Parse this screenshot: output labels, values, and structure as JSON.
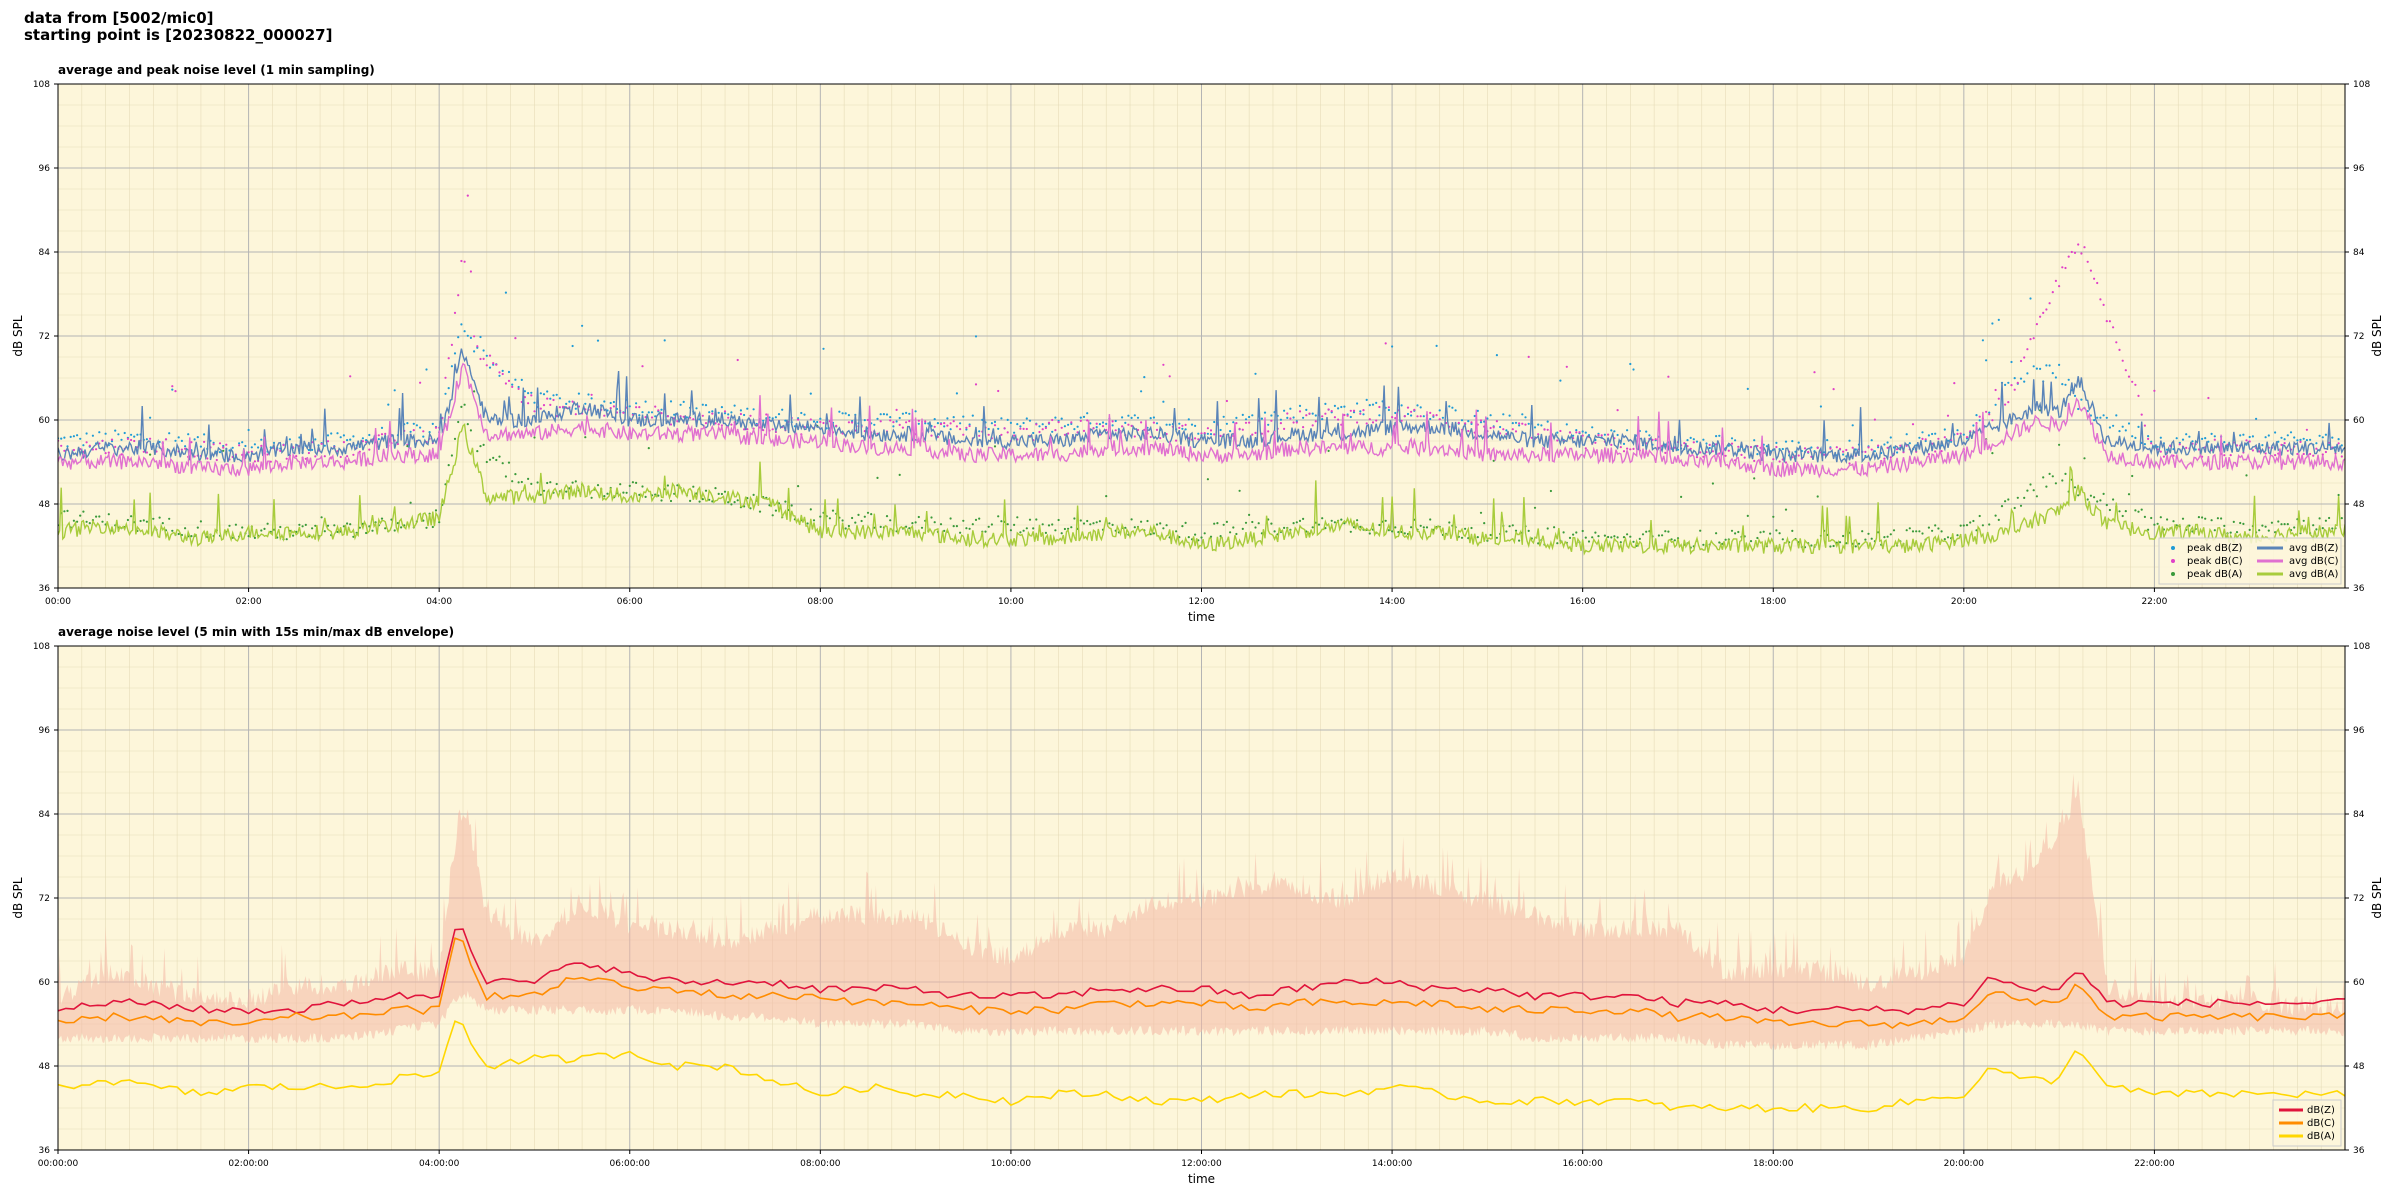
{
  "header": {
    "line1": "data from [5002/mic0]",
    "line2": "starting point is [20230822_000027]"
  },
  "colors": {
    "background": "#fdf6da",
    "peak_z": "#1f9bd6",
    "peak_c": "#e040c8",
    "peak_a": "#3a9a3a",
    "avg_z": "#5a84b8",
    "avg_c": "#e070d0",
    "avg_a": "#a8cc3c",
    "db_z": "#e0143c",
    "db_c": "#ff8c00",
    "db_a": "#ffd700",
    "envelope": "#f4b8a6"
  },
  "chart_data": [
    {
      "type": "scatter",
      "title": "average and peak noise level (1 min sampling)",
      "xlabel": "time",
      "ylabel": "dB SPL",
      "ylabel_right": "dB SPL",
      "ylim": [
        36,
        108
      ],
      "yticks": [
        "36",
        "48",
        "60",
        "72",
        "84",
        "96",
        "108"
      ],
      "xlim_hours": [
        0,
        24
      ],
      "xticks": [
        "00:00",
        "02:00",
        "04:00",
        "06:00",
        "08:00",
        "10:00",
        "12:00",
        "14:00",
        "16:00",
        "18:00",
        "20:00",
        "22:00"
      ],
      "grid": true,
      "legend_position": "lower-right",
      "series": [
        {
          "name": "peak dB(Z)",
          "kind": "points",
          "color_key": "peak_z",
          "hours": [
            0,
            1,
            2,
            3,
            4,
            4.25,
            4.4,
            5,
            6,
            7,
            8,
            9,
            10,
            11,
            12,
            13,
            14,
            15,
            16,
            17,
            18,
            19,
            20,
            20.5,
            21,
            21.2,
            22,
            23,
            24
          ],
          "values": [
            57,
            57.5,
            56,
            57,
            59,
            74,
            70,
            63,
            62,
            61,
            60,
            60,
            59,
            60,
            59,
            61,
            62,
            60,
            58,
            57,
            56,
            56,
            58,
            66,
            67,
            62,
            57,
            57,
            57
          ]
        },
        {
          "name": "peak dB(C)",
          "kind": "points",
          "color_key": "peak_c",
          "hours": [
            0,
            1,
            2,
            3,
            4,
            4.25,
            4.4,
            5,
            6,
            7,
            8,
            9,
            10,
            11,
            12,
            13,
            14,
            15,
            16,
            17,
            18,
            19,
            20,
            20.5,
            21,
            21.2,
            22,
            23,
            24
          ],
          "values": [
            56,
            56.5,
            55,
            56,
            58,
            84,
            70,
            62,
            61,
            60,
            59,
            59,
            58,
            59,
            58,
            60,
            61,
            59,
            57,
            56,
            55,
            55,
            57,
            64,
            80,
            86,
            56,
            56,
            56
          ]
        },
        {
          "name": "peak dB(A)",
          "kind": "points",
          "color_key": "peak_a",
          "hours": [
            0,
            1,
            2,
            3,
            4,
            4.25,
            4.4,
            5,
            6,
            7,
            8,
            9,
            10,
            11,
            12,
            13,
            14,
            15,
            16,
            17,
            18,
            19,
            20,
            20.5,
            21,
            21.2,
            22,
            23,
            24
          ],
          "values": [
            46,
            45,
            44,
            44,
            46,
            62,
            56,
            50,
            50,
            49,
            46,
            45,
            45,
            45,
            44,
            45,
            45,
            44,
            43,
            43,
            43,
            43,
            44,
            48,
            52,
            50,
            45,
            45,
            45
          ]
        },
        {
          "name": "avg dB(Z)",
          "kind": "line",
          "color_key": "avg_z",
          "hours": [
            0,
            0.5,
            1,
            1.5,
            2,
            2.5,
            3,
            3.5,
            4,
            4.25,
            4.5,
            5,
            5.5,
            6,
            6.5,
            7,
            7.5,
            8,
            8.5,
            9,
            9.5,
            10,
            10.5,
            11,
            11.5,
            12,
            12.5,
            13,
            13.5,
            14,
            14.5,
            15,
            15.5,
            16,
            16.5,
            17,
            17.5,
            18,
            18.5,
            19,
            19.5,
            20,
            20.5,
            20.8,
            21,
            21.2,
            21.5,
            22,
            22.5,
            23,
            23.5,
            24
          ],
          "values": [
            55,
            56,
            56,
            55,
            55,
            56,
            56,
            57,
            57,
            70,
            60,
            60,
            62,
            60,
            60,
            60,
            59,
            59,
            58,
            58,
            57,
            57,
            57,
            58,
            58,
            57,
            57,
            58,
            58,
            59,
            59,
            58,
            57,
            57,
            57,
            56,
            56,
            55,
            55,
            55,
            56,
            57,
            60,
            62,
            61,
            66,
            57,
            56,
            56,
            56,
            56,
            56
          ]
        },
        {
          "name": "avg dB(C)",
          "kind": "line",
          "color_key": "avg_c",
          "hours": [
            0,
            0.5,
            1,
            1.5,
            2,
            2.5,
            3,
            3.5,
            4,
            4.25,
            4.5,
            5,
            5.5,
            6,
            6.5,
            7,
            7.5,
            8,
            8.5,
            9,
            9.5,
            10,
            10.5,
            11,
            11.5,
            12,
            12.5,
            13,
            13.5,
            14,
            14.5,
            15,
            15.5,
            16,
            16.5,
            17,
            17.5,
            18,
            18.5,
            19,
            19.5,
            20,
            20.5,
            20.8,
            21,
            21.2,
            21.5,
            22,
            22.5,
            23,
            23.5,
            24
          ],
          "values": [
            54,
            54,
            54,
            53,
            53,
            54,
            54,
            55,
            55,
            68,
            58,
            58,
            59,
            58,
            58,
            58,
            57,
            57,
            56,
            56,
            55,
            55,
            55,
            56,
            56,
            55,
            55,
            56,
            56,
            56,
            56,
            55,
            55,
            55,
            55,
            54,
            54,
            53,
            53,
            53,
            54,
            55,
            58,
            60,
            59,
            63,
            55,
            54,
            54,
            54,
            54,
            54
          ]
        },
        {
          "name": "avg dB(A)",
          "kind": "line",
          "color_key": "avg_a",
          "hours": [
            0,
            0.5,
            1,
            1.5,
            2,
            2.5,
            3,
            3.5,
            4,
            4.25,
            4.5,
            5,
            5.5,
            6,
            6.5,
            7,
            7.5,
            8,
            8.5,
            9,
            9.5,
            10,
            10.5,
            11,
            11.5,
            12,
            12.5,
            13,
            13.5,
            14,
            14.5,
            15,
            15.5,
            16,
            16.5,
            17,
            17.5,
            18,
            18.5,
            19,
            19.5,
            20,
            20.5,
            20.8,
            21,
            21.2,
            21.5,
            22,
            22.5,
            23,
            23.5,
            24
          ],
          "values": [
            44,
            45,
            44,
            43,
            44,
            44,
            44,
            45,
            46,
            59,
            49,
            49,
            50,
            49,
            50,
            49,
            48,
            44,
            44,
            44,
            43,
            43,
            43,
            44,
            44,
            42,
            43,
            44,
            45,
            44,
            44,
            43,
            43,
            42,
            42,
            42,
            42,
            42,
            42,
            42,
            42,
            43,
            44,
            46,
            47,
            50,
            45,
            44,
            44,
            43,
            44,
            44
          ]
        }
      ]
    },
    {
      "type": "line",
      "title": "average noise level (5 min with 15s min/max dB envelope)",
      "xlabel": "time",
      "ylabel": "dB SPL",
      "ylabel_right": "dB SPL",
      "ylim": [
        36,
        108
      ],
      "yticks": [
        "36",
        "48",
        "60",
        "72",
        "84",
        "96",
        "108"
      ],
      "xlim_hours": [
        0,
        24
      ],
      "xticks": [
        "00:00:00",
        "02:00:00",
        "04:00:00",
        "06:00:00",
        "08:00:00",
        "10:00:00",
        "12:00:00",
        "14:00:00",
        "16:00:00",
        "18:00:00",
        "20:00:00",
        "22:00:00"
      ],
      "grid": true,
      "legend_position": "lower-right",
      "envelope": {
        "hours": [
          0,
          0.5,
          1,
          1.5,
          2,
          2.5,
          3,
          3.5,
          4,
          4.2,
          4.3,
          4.5,
          5,
          5.5,
          6,
          6.5,
          7,
          7.5,
          8,
          8.5,
          9,
          9.5,
          10,
          10.5,
          11,
          11.5,
          12,
          12.5,
          13,
          13.5,
          14,
          14.5,
          15,
          15.5,
          16,
          16.5,
          17,
          17.5,
          18,
          18.5,
          19,
          19.5,
          20,
          20.3,
          20.6,
          21,
          21.2,
          21.5,
          22,
          22.5,
          23,
          23.5,
          24
        ],
        "max": [
          58,
          62,
          60,
          58,
          58,
          60,
          60,
          62,
          62,
          84,
          84,
          70,
          66,
          72,
          68,
          68,
          66,
          68,
          70,
          70,
          70,
          66,
          64,
          68,
          68,
          72,
          72,
          74,
          74,
          72,
          76,
          74,
          72,
          70,
          68,
          68,
          68,
          62,
          62,
          62,
          60,
          62,
          64,
          74,
          76,
          82,
          88,
          60,
          58,
          58,
          58,
          57,
          57
        ],
        "min": [
          52,
          52,
          52,
          52,
          52,
          52,
          52,
          53,
          54,
          58,
          58,
          56,
          56,
          56,
          56,
          56,
          55,
          55,
          54,
          54,
          54,
          53,
          53,
          53,
          53,
          53,
          53,
          53,
          53,
          53,
          53,
          53,
          53,
          52,
          52,
          52,
          52,
          51,
          51,
          51,
          51,
          52,
          53,
          54,
          54,
          54,
          54,
          53,
          53,
          53,
          53,
          53,
          53
        ]
      },
      "series": [
        {
          "name": "dB(Z)",
          "color_key": "db_z",
          "hours": [
            0,
            0.5,
            1,
            1.5,
            2,
            2.5,
            3,
            3.5,
            4,
            4.2,
            4.3,
            4.5,
            5,
            5.5,
            6,
            6.5,
            7,
            7.5,
            8,
            8.5,
            9,
            9.5,
            10,
            10.5,
            11,
            11.5,
            12,
            12.5,
            13,
            13.5,
            14,
            14.5,
            15,
            15.5,
            16,
            16.5,
            17,
            17.5,
            18,
            18.5,
            19,
            19.5,
            20,
            20.3,
            20.6,
            21,
            21.2,
            21.5,
            22,
            22.5,
            23,
            23.5,
            24
          ],
          "values": [
            56,
            57,
            57,
            56,
            56,
            56,
            57,
            58,
            58,
            70,
            66,
            60,
            60,
            63,
            61,
            60,
            60,
            60,
            59,
            59,
            59,
            58,
            58,
            58,
            59,
            59,
            59,
            58,
            59,
            60,
            60,
            59,
            59,
            58,
            58,
            58,
            57,
            57,
            56,
            56,
            56,
            56,
            57,
            61,
            59,
            59,
            62,
            57,
            57,
            57,
            57,
            57,
            57
          ]
        },
        {
          "name": "dB(C)",
          "color_key": "db_c",
          "hours": [
            0,
            0.5,
            1,
            1.5,
            2,
            2.5,
            3,
            3.5,
            4,
            4.2,
            4.3,
            4.5,
            5,
            5.5,
            6,
            6.5,
            7,
            7.5,
            8,
            8.5,
            9,
            9.5,
            10,
            10.5,
            11,
            11.5,
            12,
            12.5,
            13,
            13.5,
            14,
            14.5,
            15,
            15.5,
            16,
            16.5,
            17,
            17.5,
            18,
            18.5,
            19,
            19.5,
            20,
            20.3,
            20.6,
            21,
            21.2,
            21.5,
            22,
            22.5,
            23,
            23.5,
            24
          ],
          "values": [
            54,
            55,
            55,
            54,
            54,
            55,
            55,
            56,
            56,
            68,
            64,
            58,
            58,
            61,
            59,
            59,
            58,
            58,
            58,
            57,
            57,
            56,
            56,
            56,
            57,
            57,
            57,
            56,
            57,
            57,
            57,
            57,
            56,
            56,
            56,
            56,
            55,
            55,
            54,
            54,
            54,
            54,
            55,
            59,
            57,
            57,
            60,
            55,
            55,
            55,
            55,
            55,
            55
          ]
        },
        {
          "name": "dB(A)",
          "color_key": "db_a",
          "hours": [
            0,
            0.5,
            1,
            1.5,
            2,
            2.5,
            3,
            3.5,
            4,
            4.2,
            4.3,
            4.5,
            5,
            5.5,
            6,
            6.5,
            7,
            7.5,
            8,
            8.5,
            9,
            9.5,
            10,
            10.5,
            11,
            11.5,
            12,
            12.5,
            13,
            13.5,
            14,
            14.5,
            15,
            15.5,
            16,
            16.5,
            17,
            17.5,
            18,
            18.5,
            19,
            19.5,
            20,
            20.3,
            20.6,
            21,
            21.2,
            21.5,
            22,
            22.5,
            23,
            23.5,
            24
          ],
          "values": [
            45,
            46,
            45,
            44,
            45,
            45,
            45,
            46,
            47,
            56,
            52,
            48,
            49,
            49,
            50,
            48,
            48,
            46,
            44,
            45,
            44,
            44,
            43,
            44,
            44,
            43,
            43,
            44,
            44,
            44,
            45,
            44,
            43,
            43,
            43,
            43,
            42,
            42,
            42,
            42,
            42,
            43,
            44,
            48,
            46,
            46,
            51,
            45,
            44,
            44,
            44,
            44,
            44
          ]
        }
      ]
    }
  ]
}
